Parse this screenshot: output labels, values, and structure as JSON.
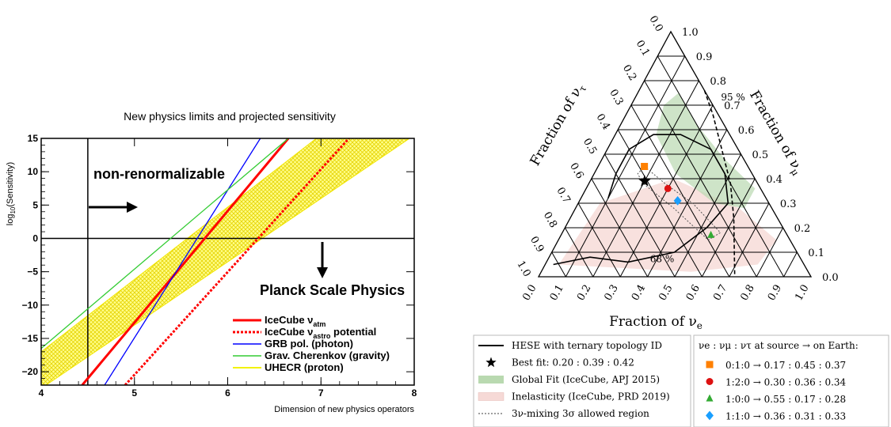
{
  "chart_data": [
    {
      "type": "line",
      "title": "New physics limits and projected sensitivity",
      "xlabel": "Dimension of new physics operators",
      "ylabel": "log10(Sensitivity)",
      "xlim": [
        4,
        8
      ],
      "ylim": [
        -22,
        15
      ],
      "xticks": [
        "4",
        "5",
        "6",
        "7",
        "8"
      ],
      "yticks": [
        "15",
        "10",
        "5",
        "0",
        "−5",
        "−10",
        "−15",
        "−20"
      ],
      "grid": false,
      "legend_position": "bottom-right",
      "annotations": {
        "non_renorm": "non-renormalizable",
        "planck": "Planck Scale Physics"
      },
      "series": [
        {
          "name_main": "IceCube  ν",
          "name_sub": "atm",
          "name_suffix": "",
          "color": "#ff0000",
          "style": "solid",
          "width": 3,
          "x": [
            4.44,
            6.65
          ],
          "y": [
            -22,
            15
          ]
        },
        {
          "name_main": "IceCube  ν",
          "name_sub": "astro",
          "name_suffix": " potential",
          "color": "#ff0000",
          "style": "dotted",
          "width": 3,
          "x": [
            4.9,
            7.3
          ],
          "y": [
            -22,
            15
          ]
        },
        {
          "name_main": "GRB pol. (photon)",
          "name_sub": "",
          "name_suffix": "",
          "color": "#0000ff",
          "style": "solid",
          "width": 1.3,
          "x": [
            4.68,
            6.35
          ],
          "y": [
            -22,
            15
          ]
        },
        {
          "name_main": "Grav. Cherenkov (gravity)",
          "name_sub": "",
          "name_suffix": "",
          "color": "#33cc33",
          "style": "solid",
          "width": 1.3,
          "x": [
            4.0,
            6.65
          ],
          "y": [
            -16.5,
            15
          ]
        },
        {
          "name_main": "UHECR (proton)",
          "name_sub": "",
          "name_suffix": "",
          "color": "#f2f200",
          "style": "band",
          "width": 1,
          "upper": {
            "x": [
              4.0,
              6.95
            ],
            "y": [
              -17,
              15
            ]
          },
          "lower": {
            "x": [
              4.0,
              7.95
            ],
            "y": [
              -22.5,
              15
            ]
          }
        }
      ]
    },
    {
      "type": "ternary",
      "axes": {
        "bottom": "Fraction of νe",
        "left": "Fraction of ντ",
        "right": "Fraction of νμ"
      },
      "ticks": [
        "0.0",
        "0.1",
        "0.2",
        "0.3",
        "0.4",
        "0.5",
        "0.6",
        "0.7",
        "0.8",
        "0.9",
        "1.0"
      ],
      "contour_labels": {
        "c95": "95 %",
        "c68": "68 %"
      },
      "best_fit": {
        "fe": 0.2,
        "fmu": 0.39,
        "ftau": 0.42,
        "label": "Best fit: 0.20 : 0.39 : 0.42"
      },
      "sources": [
        {
          "label": "0:1:0 → 0.17 : 0.45 : 0.37",
          "fe": 0.17,
          "fmu": 0.45,
          "ftau": 0.37,
          "color": "#ff8000",
          "marker": "square"
        },
        {
          "label": "1:2:0 → 0.30 : 0.36 : 0.34",
          "fe": 0.3,
          "fmu": 0.36,
          "ftau": 0.34,
          "color": "#dd1111",
          "marker": "circle"
        },
        {
          "label": "1:0:0 → 0.55 : 0.17 : 0.28",
          "fe": 0.55,
          "fmu": 0.17,
          "ftau": 0.28,
          "color": "#33aa33",
          "marker": "triangle"
        },
        {
          "label": "1:1:0 → 0.36 : 0.31 : 0.33",
          "fe": 0.36,
          "fmu": 0.31,
          "ftau": 0.33,
          "color": "#1a9fff",
          "marker": "diamond"
        }
      ],
      "legend_left": [
        {
          "label": "HESE with ternary topology ID",
          "kind": "line"
        },
        {
          "label": "Best fit: 0.20 : 0.39 : 0.42",
          "kind": "star"
        },
        {
          "label": "Global Fit (IceCube, APJ 2015)",
          "kind": "green-box"
        },
        {
          "label": "Inelasticity (IceCube, PRD 2019)",
          "kind": "pink-box"
        },
        {
          "label": "3ν-mixing 3σ allowed region",
          "kind": "dotted"
        }
      ],
      "legend_right_title": "νe : νμ : ντ at source → on Earth:",
      "colors": {
        "global_fit": "#b9d9b0",
        "inelasticity": "#f6d9d6"
      }
    }
  ]
}
